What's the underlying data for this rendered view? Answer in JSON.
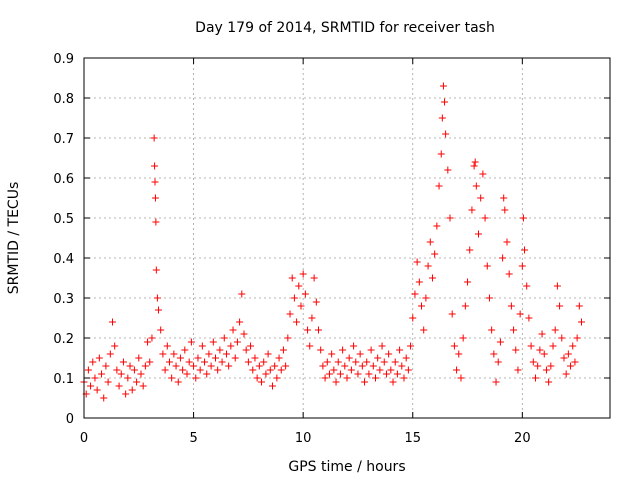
{
  "chart_data": {
    "type": "scatter",
    "title": "Day 179 of 2014, SRMTID for receiver tash",
    "xlabel": "GPS time / hours",
    "ylabel": "SRMTID / TECUs",
    "xlim": [
      0,
      24
    ],
    "ylim": [
      0,
      0.9
    ],
    "x_ticks": [
      0,
      5,
      10,
      15,
      20
    ],
    "x_tick_labels": [
      "0",
      "5",
      "10",
      "15",
      "20"
    ],
    "y_ticks": [
      0,
      0.1,
      0.2,
      0.3,
      0.4,
      0.5,
      0.6,
      0.7,
      0.8,
      0.9
    ],
    "y_tick_labels": [
      "0",
      "0.1",
      "0.2",
      "0.3",
      "0.4",
      "0.5",
      "0.6",
      "0.7",
      "0.8",
      "0.9"
    ],
    "grid": true,
    "marker": "+",
    "series_color": "#ff0000",
    "series": [
      {
        "name": "SRMTID",
        "points": [
          [
            0.0,
            0.09
          ],
          [
            0.1,
            0.06
          ],
          [
            0.2,
            0.12
          ],
          [
            0.3,
            0.08
          ],
          [
            0.4,
            0.14
          ],
          [
            0.5,
            0.1
          ],
          [
            0.6,
            0.07
          ],
          [
            0.7,
            0.15
          ],
          [
            0.8,
            0.11
          ],
          [
            0.9,
            0.05
          ],
          [
            1.0,
            0.13
          ],
          [
            1.1,
            0.09
          ],
          [
            1.2,
            0.16
          ],
          [
            1.3,
            0.24
          ],
          [
            1.4,
            0.18
          ],
          [
            1.5,
            0.12
          ],
          [
            1.6,
            0.08
          ],
          [
            1.7,
            0.11
          ],
          [
            1.8,
            0.14
          ],
          [
            1.9,
            0.06
          ],
          [
            2.0,
            0.1
          ],
          [
            2.1,
            0.13
          ],
          [
            2.2,
            0.07
          ],
          [
            2.3,
            0.12
          ],
          [
            2.4,
            0.09
          ],
          [
            2.5,
            0.15
          ],
          [
            2.6,
            0.11
          ],
          [
            2.7,
            0.08
          ],
          [
            2.8,
            0.13
          ],
          [
            2.9,
            0.19
          ],
          [
            3.0,
            0.14
          ],
          [
            3.1,
            0.2
          ],
          [
            3.2,
            0.7
          ],
          [
            3.22,
            0.63
          ],
          [
            3.24,
            0.59
          ],
          [
            3.26,
            0.55
          ],
          [
            3.28,
            0.49
          ],
          [
            3.3,
            0.37
          ],
          [
            3.35,
            0.3
          ],
          [
            3.4,
            0.27
          ],
          [
            3.5,
            0.22
          ],
          [
            3.6,
            0.16
          ],
          [
            3.7,
            0.12
          ],
          [
            3.8,
            0.18
          ],
          [
            3.9,
            0.14
          ],
          [
            4.0,
            0.1
          ],
          [
            4.1,
            0.16
          ],
          [
            4.2,
            0.13
          ],
          [
            4.3,
            0.09
          ],
          [
            4.4,
            0.15
          ],
          [
            4.5,
            0.12
          ],
          [
            4.6,
            0.17
          ],
          [
            4.7,
            0.11
          ],
          [
            4.8,
            0.14
          ],
          [
            4.9,
            0.19
          ],
          [
            5.0,
            0.13
          ],
          [
            5.1,
            0.1
          ],
          [
            5.2,
            0.15
          ],
          [
            5.3,
            0.12
          ],
          [
            5.4,
            0.18
          ],
          [
            5.5,
            0.14
          ],
          [
            5.6,
            0.11
          ],
          [
            5.7,
            0.16
          ],
          [
            5.8,
            0.13
          ],
          [
            5.9,
            0.19
          ],
          [
            6.0,
            0.15
          ],
          [
            6.1,
            0.12
          ],
          [
            6.2,
            0.17
          ],
          [
            6.3,
            0.14
          ],
          [
            6.4,
            0.2
          ],
          [
            6.5,
            0.16
          ],
          [
            6.6,
            0.13
          ],
          [
            6.7,
            0.18
          ],
          [
            6.8,
            0.22
          ],
          [
            6.9,
            0.15
          ],
          [
            7.0,
            0.19
          ],
          [
            7.1,
            0.24
          ],
          [
            7.2,
            0.31
          ],
          [
            7.3,
            0.21
          ],
          [
            7.4,
            0.17
          ],
          [
            7.5,
            0.14
          ],
          [
            7.6,
            0.18
          ],
          [
            7.7,
            0.12
          ],
          [
            7.8,
            0.15
          ],
          [
            7.9,
            0.1
          ],
          [
            8.0,
            0.13
          ],
          [
            8.1,
            0.09
          ],
          [
            8.2,
            0.14
          ],
          [
            8.3,
            0.11
          ],
          [
            8.4,
            0.16
          ],
          [
            8.5,
            0.12
          ],
          [
            8.6,
            0.08
          ],
          [
            8.7,
            0.13
          ],
          [
            8.8,
            0.1
          ],
          [
            8.9,
            0.15
          ],
          [
            9.0,
            0.12
          ],
          [
            9.1,
            0.17
          ],
          [
            9.2,
            0.13
          ],
          [
            9.3,
            0.2
          ],
          [
            9.4,
            0.26
          ],
          [
            9.5,
            0.35
          ],
          [
            9.6,
            0.3
          ],
          [
            9.7,
            0.24
          ],
          [
            9.8,
            0.33
          ],
          [
            9.9,
            0.28
          ],
          [
            10.0,
            0.36
          ],
          [
            10.1,
            0.31
          ],
          [
            10.2,
            0.22
          ],
          [
            10.3,
            0.18
          ],
          [
            10.4,
            0.25
          ],
          [
            10.5,
            0.35
          ],
          [
            10.6,
            0.29
          ],
          [
            10.7,
            0.22
          ],
          [
            10.8,
            0.17
          ],
          [
            10.9,
            0.13
          ],
          [
            11.0,
            0.1
          ],
          [
            11.1,
            0.14
          ],
          [
            11.2,
            0.11
          ],
          [
            11.3,
            0.16
          ],
          [
            11.4,
            0.12
          ],
          [
            11.5,
            0.09
          ],
          [
            11.6,
            0.14
          ],
          [
            11.7,
            0.11
          ],
          [
            11.8,
            0.17
          ],
          [
            11.9,
            0.13
          ],
          [
            12.0,
            0.1
          ],
          [
            12.1,
            0.15
          ],
          [
            12.2,
            0.12
          ],
          [
            12.3,
            0.18
          ],
          [
            12.4,
            0.14
          ],
          [
            12.5,
            0.11
          ],
          [
            12.6,
            0.16
          ],
          [
            12.7,
            0.13
          ],
          [
            12.8,
            0.09
          ],
          [
            12.9,
            0.14
          ],
          [
            13.0,
            0.11
          ],
          [
            13.1,
            0.17
          ],
          [
            13.2,
            0.13
          ],
          [
            13.3,
            0.1
          ],
          [
            13.4,
            0.15
          ],
          [
            13.5,
            0.12
          ],
          [
            13.6,
            0.18
          ],
          [
            13.7,
            0.14
          ],
          [
            13.8,
            0.11
          ],
          [
            13.9,
            0.16
          ],
          [
            14.0,
            0.12
          ],
          [
            14.1,
            0.09
          ],
          [
            14.2,
            0.14
          ],
          [
            14.3,
            0.11
          ],
          [
            14.4,
            0.17
          ],
          [
            14.5,
            0.13
          ],
          [
            14.6,
            0.1
          ],
          [
            14.7,
            0.15
          ],
          [
            14.8,
            0.12
          ],
          [
            14.9,
            0.18
          ],
          [
            15.0,
            0.25
          ],
          [
            15.1,
            0.31
          ],
          [
            15.2,
            0.39
          ],
          [
            15.3,
            0.34
          ],
          [
            15.4,
            0.28
          ],
          [
            15.5,
            0.22
          ],
          [
            15.6,
            0.3
          ],
          [
            15.7,
            0.38
          ],
          [
            15.8,
            0.44
          ],
          [
            15.9,
            0.35
          ],
          [
            16.0,
            0.41
          ],
          [
            16.1,
            0.48
          ],
          [
            16.2,
            0.58
          ],
          [
            16.3,
            0.66
          ],
          [
            16.35,
            0.75
          ],
          [
            16.4,
            0.83
          ],
          [
            16.45,
            0.79
          ],
          [
            16.5,
            0.71
          ],
          [
            16.6,
            0.62
          ],
          [
            16.7,
            0.5
          ],
          [
            16.8,
            0.26
          ],
          [
            16.9,
            0.18
          ],
          [
            17.0,
            0.12
          ],
          [
            17.1,
            0.16
          ],
          [
            17.2,
            0.1
          ],
          [
            17.3,
            0.2
          ],
          [
            17.4,
            0.28
          ],
          [
            17.5,
            0.34
          ],
          [
            17.6,
            0.42
          ],
          [
            17.7,
            0.52
          ],
          [
            17.8,
            0.63
          ],
          [
            17.85,
            0.64
          ],
          [
            17.9,
            0.58
          ],
          [
            18.0,
            0.46
          ],
          [
            18.1,
            0.55
          ],
          [
            18.2,
            0.61
          ],
          [
            18.3,
            0.5
          ],
          [
            18.4,
            0.38
          ],
          [
            18.5,
            0.3
          ],
          [
            18.6,
            0.22
          ],
          [
            18.7,
            0.16
          ],
          [
            18.8,
            0.09
          ],
          [
            18.9,
            0.14
          ],
          [
            19.0,
            0.19
          ],
          [
            19.1,
            0.4
          ],
          [
            19.15,
            0.55
          ],
          [
            19.2,
            0.52
          ],
          [
            19.3,
            0.44
          ],
          [
            19.4,
            0.36
          ],
          [
            19.5,
            0.28
          ],
          [
            19.6,
            0.22
          ],
          [
            19.7,
            0.17
          ],
          [
            19.8,
            0.12
          ],
          [
            19.9,
            0.26
          ],
          [
            20.0,
            0.38
          ],
          [
            20.05,
            0.5
          ],
          [
            20.1,
            0.42
          ],
          [
            20.2,
            0.33
          ],
          [
            20.3,
            0.25
          ],
          [
            20.4,
            0.18
          ],
          [
            20.5,
            0.14
          ],
          [
            20.6,
            0.1
          ],
          [
            20.7,
            0.13
          ],
          [
            20.8,
            0.17
          ],
          [
            20.9,
            0.21
          ],
          [
            21.0,
            0.16
          ],
          [
            21.1,
            0.12
          ],
          [
            21.2,
            0.09
          ],
          [
            21.3,
            0.13
          ],
          [
            21.4,
            0.18
          ],
          [
            21.5,
            0.22
          ],
          [
            21.6,
            0.33
          ],
          [
            21.7,
            0.28
          ],
          [
            21.8,
            0.2
          ],
          [
            21.9,
            0.15
          ],
          [
            22.0,
            0.11
          ],
          [
            22.1,
            0.16
          ],
          [
            22.2,
            0.13
          ],
          [
            22.3,
            0.18
          ],
          [
            22.4,
            0.14
          ],
          [
            22.5,
            0.2
          ],
          [
            22.6,
            0.28
          ],
          [
            22.7,
            0.24
          ]
        ]
      }
    ]
  }
}
